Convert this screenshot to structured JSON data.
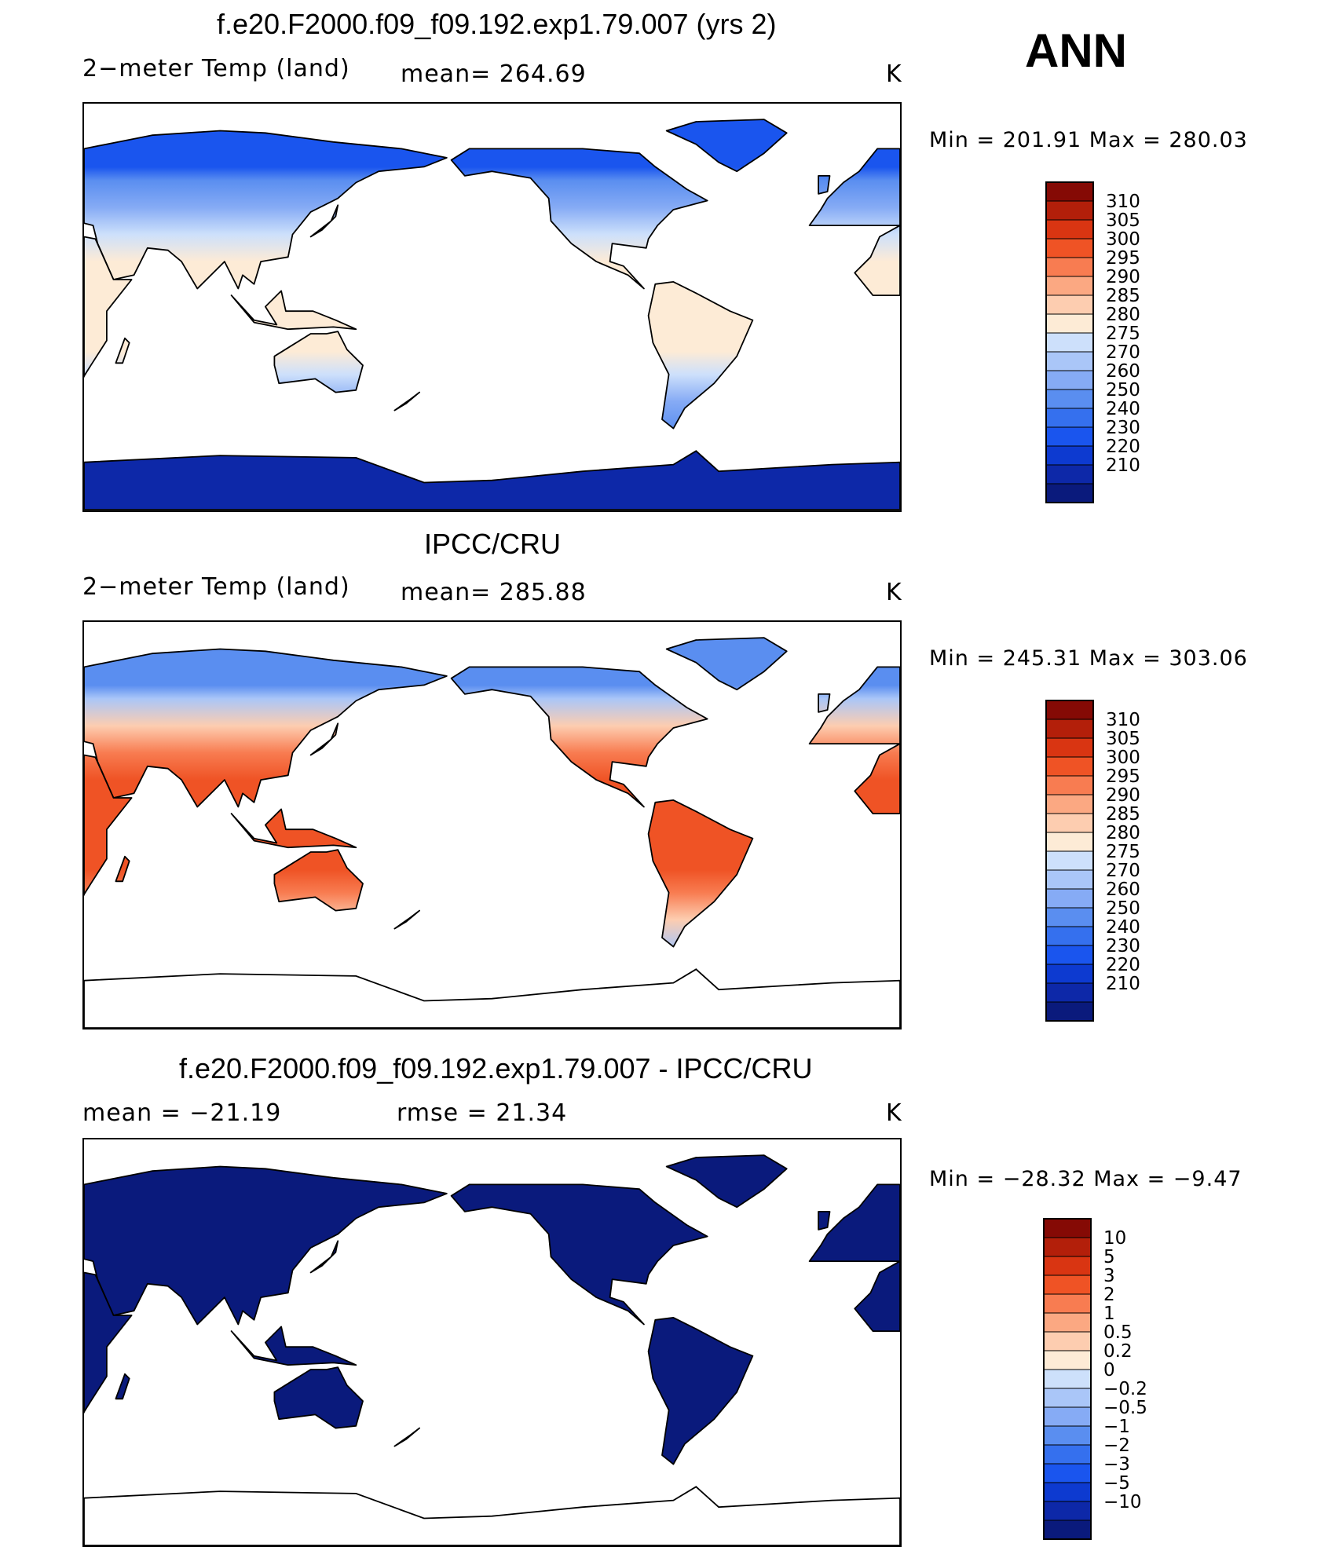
{
  "season": "ANN",
  "colors": {
    "temp_scale": [
      "#0a1a7c",
      "#0d28a8",
      "#0d3ad0",
      "#1a55ee",
      "#3570ee",
      "#5a8ef0",
      "#86abf5",
      "#aac6f8",
      "#cde0fb",
      "#fdebd6",
      "#fdcdb0",
      "#fba882",
      "#f87c51",
      "#ef5325",
      "#d93512",
      "#b31f0a",
      "#850a05"
    ],
    "diff_scale": [
      "#0a1a7c",
      "#0d28a8",
      "#0d3ad0",
      "#1a55ee",
      "#3570ee",
      "#5a8ef0",
      "#86abf5",
      "#aac6f8",
      "#cde0fb",
      "#fdebd6",
      "#fdcdb0",
      "#fba882",
      "#f87c51",
      "#ef5325",
      "#d93512",
      "#b31f0a",
      "#850a05"
    ],
    "coast": "#000000"
  },
  "panels": [
    {
      "id": "model",
      "title": "f.e20.F2000.f09_f09.192.exp1.79.007 (yrs 2)",
      "left_label": "2−meter Temp (land)",
      "center_label": "mean= 264.69",
      "units": "K",
      "min_max": "Min = 201.91 Max = 280.03",
      "scale": "temp",
      "land_colors": {
        "polar": "#1a55ee",
        "boreal": "#5a8ef0",
        "mid": "#86abf5",
        "subtropic": "#cde0fb",
        "tropic": "#fdebd6",
        "antarctic": "#0d28a8"
      }
    },
    {
      "id": "obs",
      "title": "IPCC/CRU",
      "left_label": "2−meter Temp (land)",
      "center_label": "mean= 285.88",
      "units": "K",
      "min_max": "Min = 245.31 Max = 303.06",
      "scale": "temp",
      "land_colors": {
        "polar": "#5a8ef0",
        "boreal": "#aac6f8",
        "mid": "#fdcdb0",
        "subtropic": "#f87c51",
        "tropic": "#ef5325",
        "antarctic": "#ffffff"
      }
    },
    {
      "id": "diff",
      "title": "f.e20.F2000.f09_f09.192.exp1.79.007 - IPCC/CRU",
      "left_label": "mean = −21.19",
      "center_label": "rmse = 21.34",
      "units": "K",
      "min_max": "Min = −28.32 Max = −9.47",
      "scale": "diff",
      "land_colors": {
        "polar": "#0a1a7c",
        "boreal": "#0a1a7c",
        "mid": "#0a1a7c",
        "subtropic": "#0a1a7c",
        "tropic": "#0a1a7c",
        "antarctic": "#ffffff"
      }
    }
  ],
  "colorbars": {
    "temp_labels": [
      "310",
      "305",
      "300",
      "295",
      "290",
      "285",
      "280",
      "275",
      "270",
      "260",
      "250",
      "240",
      "230",
      "220",
      "210"
    ],
    "diff_labels": [
      "10",
      "5",
      "3",
      "2",
      "1",
      "0.5",
      "0.2",
      "0",
      "−0.2",
      "−0.5",
      "−1",
      "−2",
      "−3",
      "−5",
      "−10"
    ]
  }
}
